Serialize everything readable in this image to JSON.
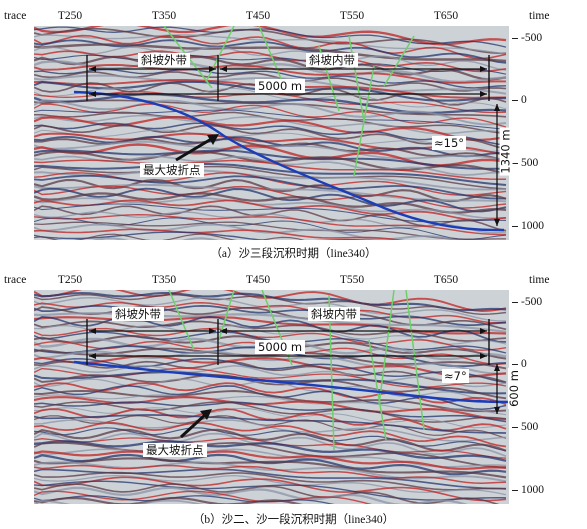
{
  "axis": {
    "trace_label": "trace",
    "time_label": "time",
    "trace_ticks": [
      "T250",
      "T350",
      "T450",
      "T550",
      "T650"
    ],
    "time_ticks": [
      "-500",
      "0",
      "500",
      "1000"
    ]
  },
  "panels": [
    {
      "caption": "（a）沙三段沉积时期（line340）",
      "outer_zone": "斜坡外带",
      "inner_zone": "斜坡内带",
      "distance": "5000 m",
      "angle": "≈15°",
      "height": "1340 m",
      "break_point": "最大坡折点"
    },
    {
      "caption": "（b）沙二、沙一段沉积时期（line340）",
      "outer_zone": "斜坡外带",
      "inner_zone": "斜坡内带",
      "distance": "5000 m",
      "angle": "≈7°",
      "height": "600 m",
      "break_point": "最大坡折点"
    }
  ],
  "colors": {
    "horizon": "#1c3db8",
    "fault": "#6fd06a",
    "reflector_red": "#c02020",
    "reflector_blue": "#23346e",
    "annotation": "#111111"
  }
}
